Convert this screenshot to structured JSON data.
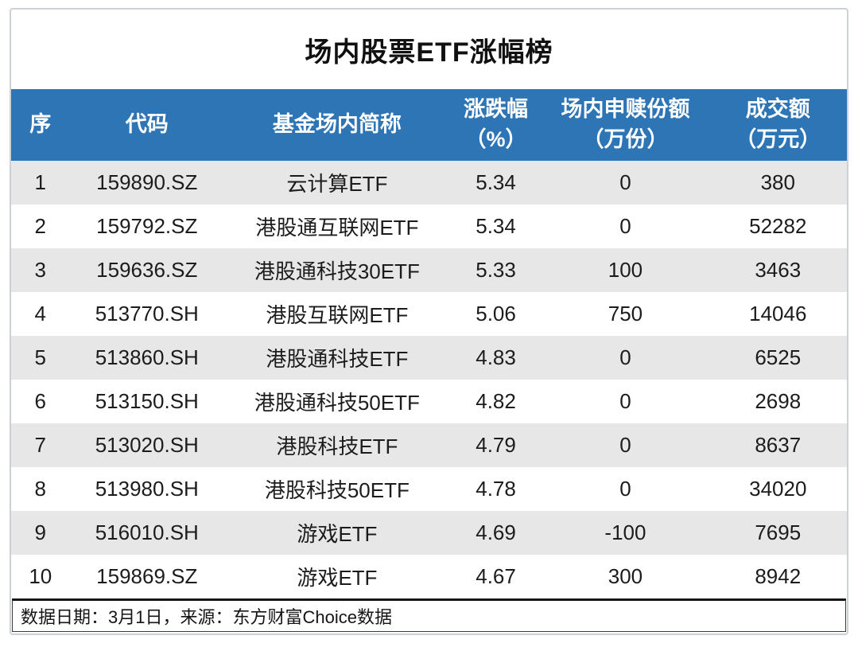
{
  "title": "场内股票ETF涨幅榜",
  "footer": {
    "note": "数据日期：3月1日，来源：东方财富Choice数据"
  },
  "colors": {
    "header_bg": "#2e75b6",
    "header_text": "#ffffff",
    "row_alt_bg": "#e7e7e7",
    "body_text": "#1c1c1c",
    "card_border": "#ccd0d9",
    "footer_border": "#161616"
  },
  "chart_data": {
    "type": "table",
    "title": "场内股票ETF涨幅榜",
    "columns": [
      {
        "label": "序",
        "sub": ""
      },
      {
        "label": "代码",
        "sub": ""
      },
      {
        "label": "基金场内简称",
        "sub": ""
      },
      {
        "label": "涨跌幅",
        "sub": "（%）"
      },
      {
        "label": "场内申赎份额",
        "sub": "（万份）"
      },
      {
        "label": "成交额",
        "sub": "（万元）"
      }
    ],
    "rows": [
      [
        "1",
        "159890.SZ",
        "云计算ETF",
        "5.34",
        "0",
        "380"
      ],
      [
        "2",
        "159792.SZ",
        "港股通互联网ETF",
        "5.34",
        "0",
        "52282"
      ],
      [
        "3",
        "159636.SZ",
        "港股通科技30ETF",
        "5.33",
        "100",
        "3463"
      ],
      [
        "4",
        "513770.SH",
        "港股互联网ETF",
        "5.06",
        "750",
        "14046"
      ],
      [
        "5",
        "513860.SH",
        "港股通科技ETF",
        "4.83",
        "0",
        "6525"
      ],
      [
        "6",
        "513150.SH",
        "港股通科技50ETF",
        "4.82",
        "0",
        "2698"
      ],
      [
        "7",
        "513020.SH",
        "港股科技ETF",
        "4.79",
        "0",
        "8637"
      ],
      [
        "8",
        "513980.SH",
        "港股科技50ETF",
        "4.78",
        "0",
        "34020"
      ],
      [
        "9",
        "516010.SH",
        "游戏ETF",
        "4.69",
        "-100",
        "7695"
      ],
      [
        "10",
        "159869.SZ",
        "游戏ETF",
        "4.67",
        "300",
        "8942"
      ]
    ]
  }
}
